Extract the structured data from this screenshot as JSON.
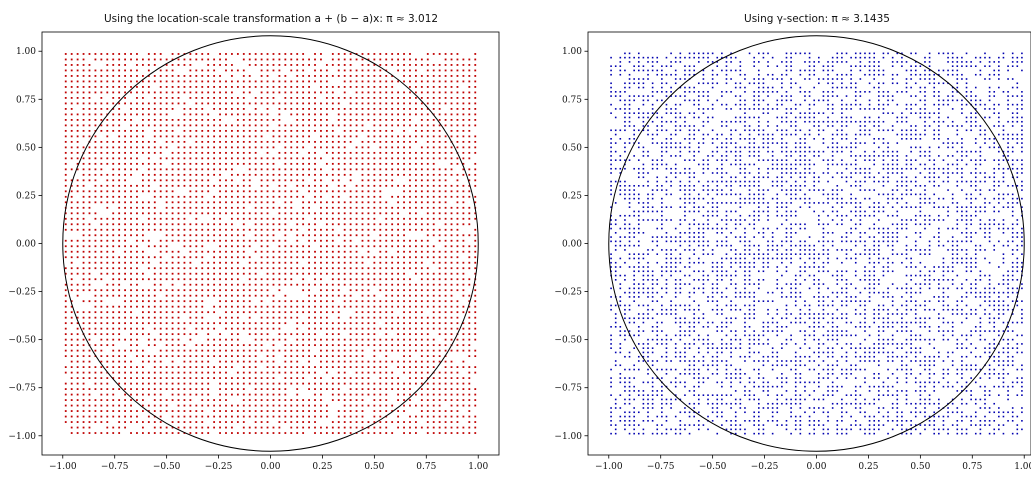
{
  "chart_data": [
    {
      "type": "scatter",
      "title": "Using the location-scale transformation a + (b − a)x: π ≈ 3.012",
      "xlabel": "",
      "ylabel": "",
      "xlim": [
        -1.0,
        1.0
      ],
      "ylim": [
        -1.0,
        1.0
      ],
      "xticks": [
        "−1.00",
        "−0.75",
        "−0.50",
        "−0.25",
        "0.00",
        "0.25",
        "0.50",
        "0.75",
        "1.00"
      ],
      "yticks": [
        "−1.00",
        "−0.75",
        "−0.50",
        "−0.25",
        "0.00",
        "0.25",
        "0.50",
        "0.75",
        "1.00"
      ],
      "point_color": "#c00000",
      "point_pattern": "regular-lattice",
      "point_count_approx": 5000,
      "overlay": {
        "shape": "circle",
        "center": [
          0,
          0
        ],
        "radius": 1,
        "color": "#000000"
      },
      "grid": false,
      "legend": "none"
    },
    {
      "type": "scatter",
      "title": "Using γ-section: π ≈ 3.1435",
      "xlabel": "",
      "ylabel": "",
      "xlim": [
        -1.0,
        1.0
      ],
      "ylim": [
        -1.0,
        1.0
      ],
      "xticks": [
        "−1.00",
        "−0.75",
        "−0.50",
        "−0.25",
        "0.00",
        "0.25",
        "0.50",
        "0.75",
        "1.00"
      ],
      "yticks": [
        "−1.00",
        "−0.75",
        "−0.50",
        "−0.25",
        "0.00",
        "0.25",
        "0.50",
        "0.75",
        "1.00"
      ],
      "point_color": "#0000b0",
      "point_pattern": "quasi-random",
      "point_count_approx": 5000,
      "overlay": {
        "shape": "circle",
        "center": [
          0,
          0
        ],
        "radius": 1,
        "color": "#000000"
      },
      "grid": false,
      "legend": "none"
    }
  ]
}
